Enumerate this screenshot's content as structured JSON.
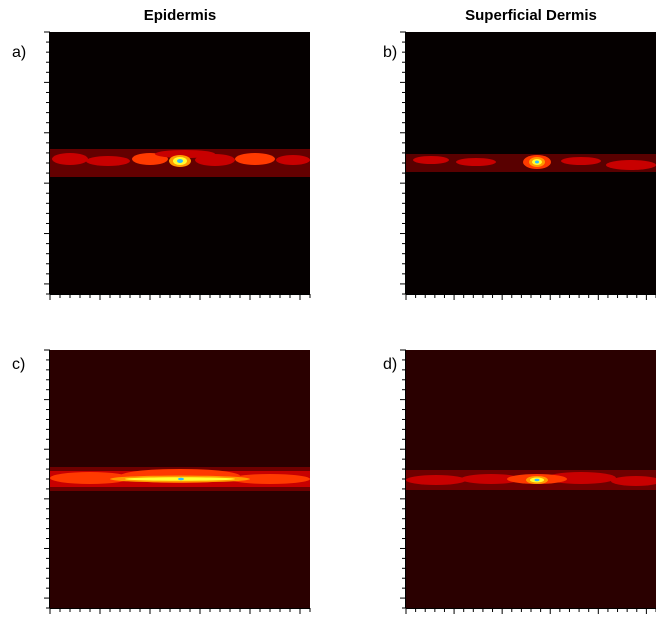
{
  "columns": [
    {
      "title": "Epidermis"
    },
    {
      "title": "Superficial Dermis"
    }
  ],
  "panels": [
    {
      "label": "a)",
      "background": "#050000"
    },
    {
      "label": "b)",
      "background": "#050000"
    },
    {
      "label": "c)",
      "background": "#2a0000"
    },
    {
      "label": "d)",
      "background": "#2a0000"
    }
  ],
  "colors": {
    "band_dark": "#6e0000",
    "band_mid": "#c80000",
    "band_bright": "#ff3a00",
    "hot_orange": "#ff9a00",
    "hot_yellow": "#ffff30",
    "hot_core": "#30c0ff"
  }
}
